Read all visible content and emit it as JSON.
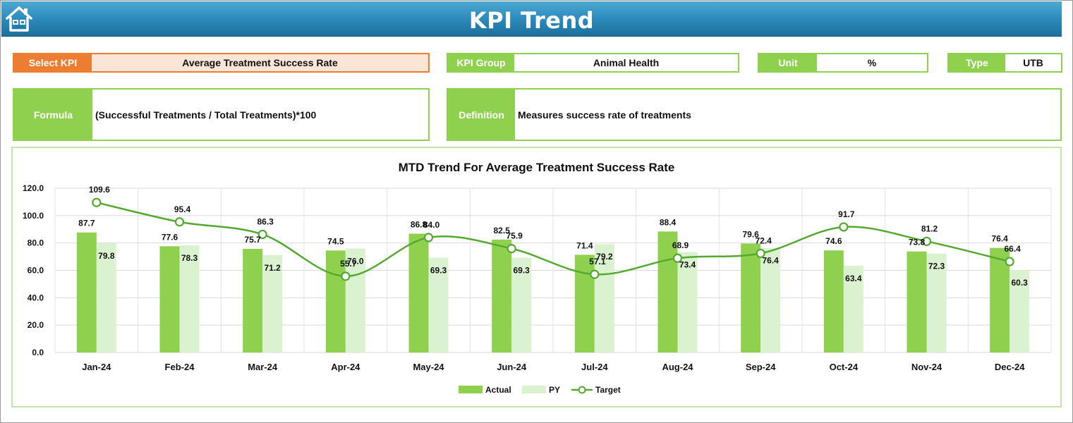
{
  "header": {
    "title": "KPI Trend",
    "home_icon": "home-icon"
  },
  "fields": {
    "select_kpi": {
      "label": "Select KPI",
      "value": "Average Treatment Success Rate"
    },
    "kpi_group": {
      "label": "KPI Group",
      "value": "Animal Health"
    },
    "unit": {
      "label": "Unit",
      "value": "%"
    },
    "type": {
      "label": "Type",
      "value": "UTB"
    },
    "formula": {
      "label": "Formula",
      "value": "(Successful Treatments / Total Treatments)*100"
    },
    "definition": {
      "label": "Definition",
      "value": "Measures success rate of treatments"
    }
  },
  "colors": {
    "accent_orange": "#ed7d31",
    "accent_green": "#8fd14f",
    "actual": "#8fd14f",
    "py": "#dbf2d0",
    "target": "#55a830",
    "header_blue": "#2f8ec0"
  },
  "chart_data": {
    "type": "bar",
    "title": "MTD Trend For Average Treatment Success Rate",
    "categories": [
      "Jan-24",
      "Feb-24",
      "Mar-24",
      "Apr-24",
      "May-24",
      "Jun-24",
      "Jul-24",
      "Aug-24",
      "Sep-24",
      "Oct-24",
      "Nov-24",
      "Dec-24"
    ],
    "series": [
      {
        "name": "Actual",
        "kind": "bar",
        "values": [
          87.7,
          77.6,
          75.7,
          74.5,
          86.8,
          82.5,
          71.4,
          88.4,
          79.6,
          74.6,
          73.8,
          76.4
        ]
      },
      {
        "name": "PY",
        "kind": "bar",
        "values": [
          79.8,
          78.3,
          71.2,
          76.0,
          69.3,
          69.3,
          79.2,
          73.4,
          76.4,
          63.4,
          72.3,
          60.3
        ]
      },
      {
        "name": "Target",
        "kind": "line",
        "values": [
          109.6,
          95.4,
          86.3,
          55.7,
          84.0,
          75.9,
          57.1,
          68.9,
          72.4,
          91.7,
          81.2,
          66.4
        ]
      }
    ],
    "ylim": [
      0,
      120
    ],
    "yticks": [
      "0.0",
      "20.0",
      "40.0",
      "60.0",
      "80.0",
      "100.0",
      "120.0"
    ],
    "grid": true,
    "legend": "bottom"
  }
}
